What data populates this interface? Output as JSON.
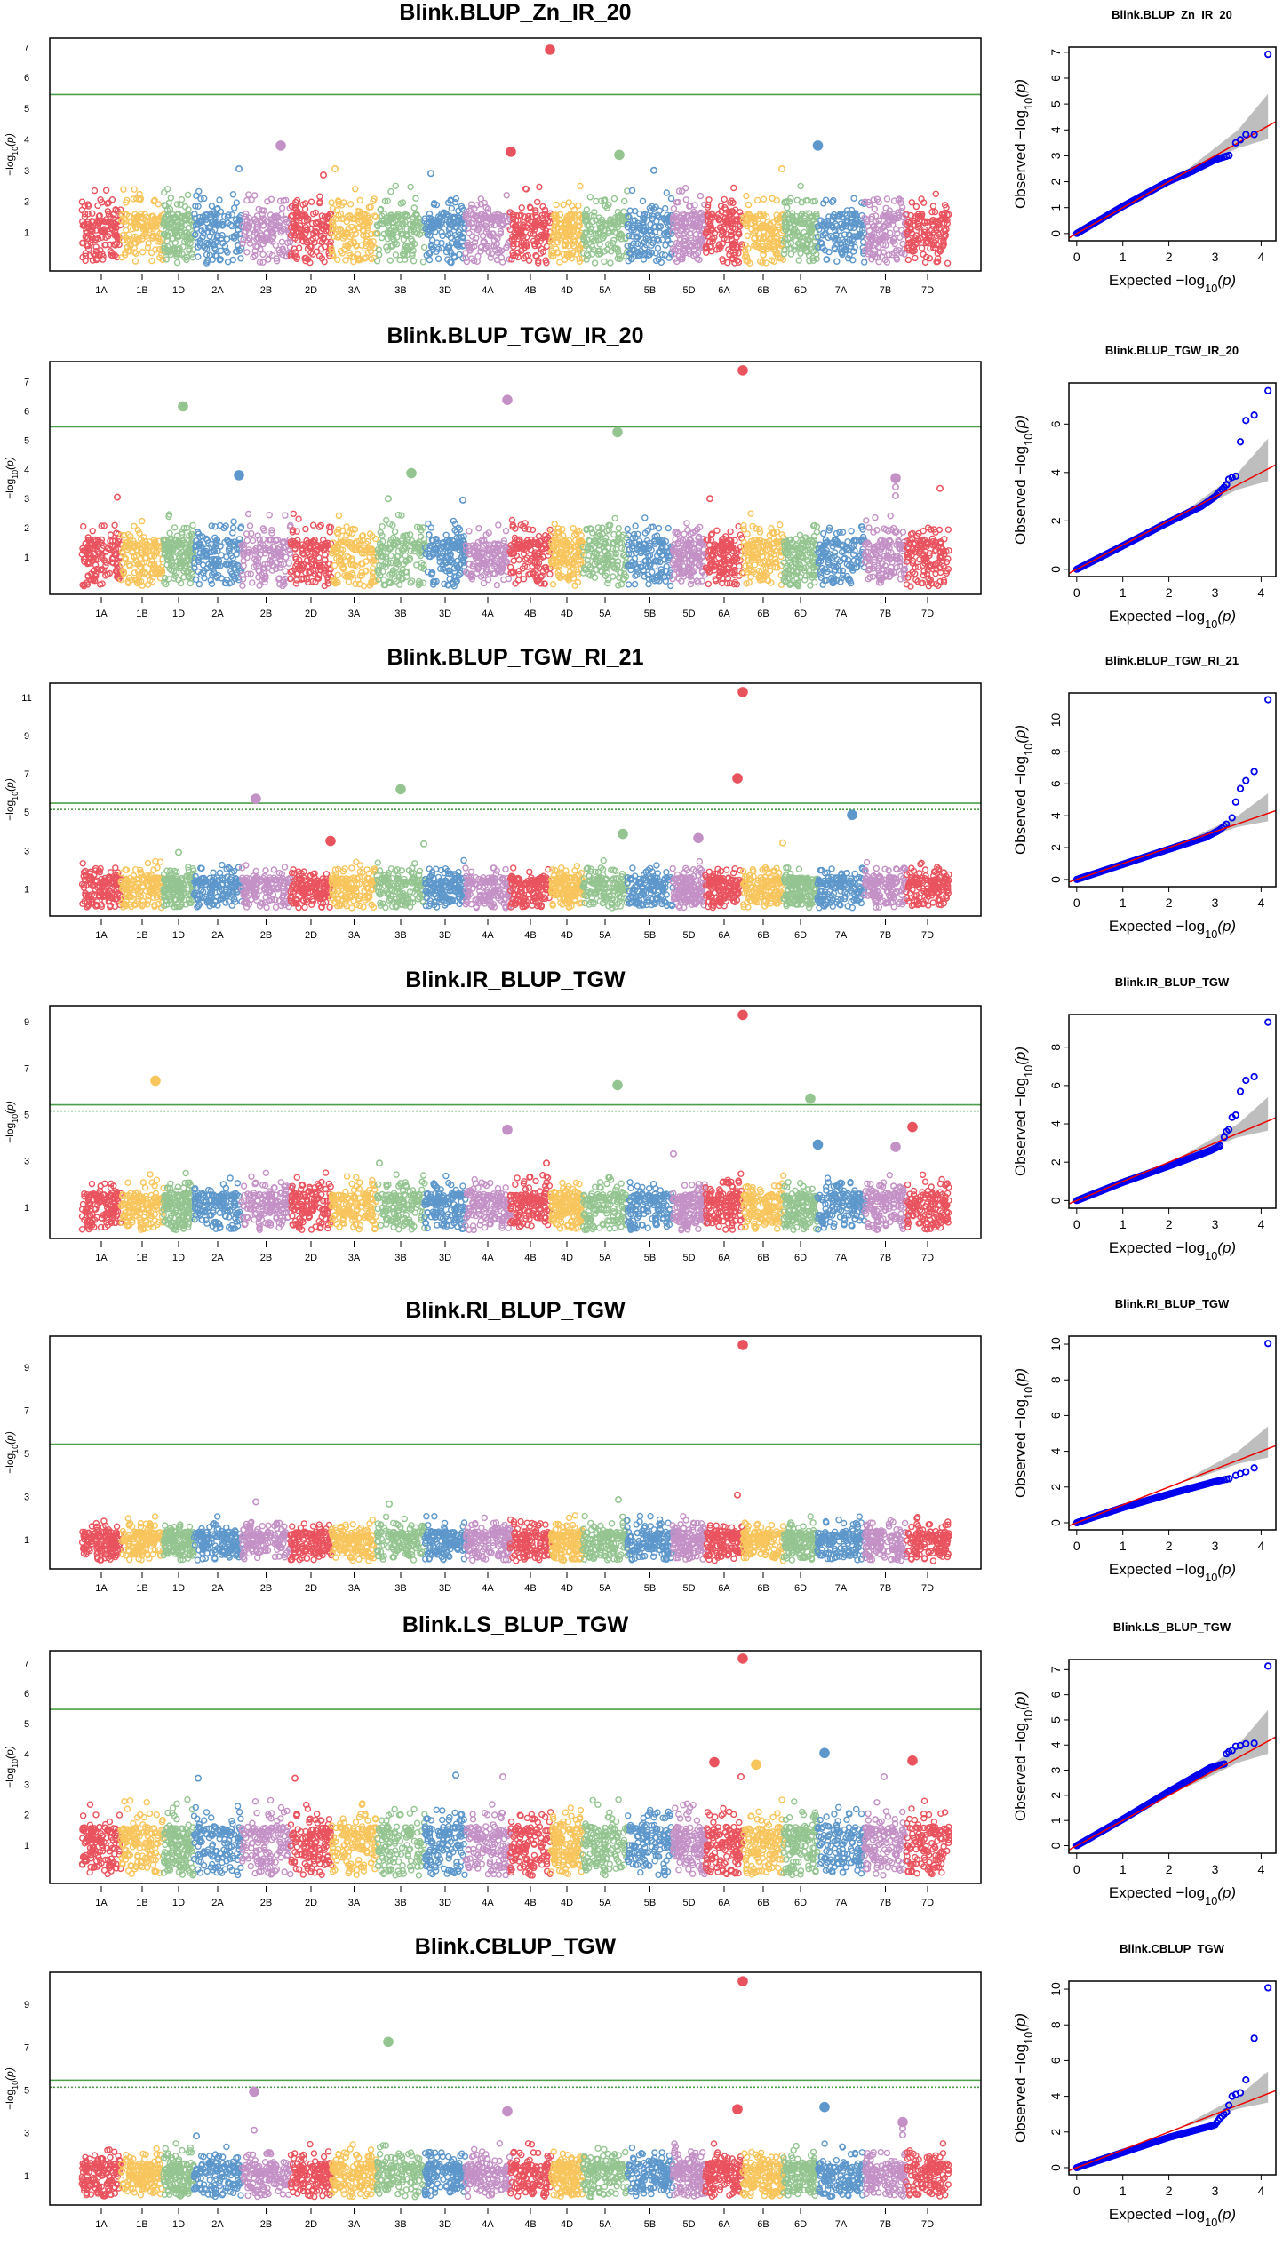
{
  "chromosomes": [
    "1A",
    "1B",
    "1D",
    "2A",
    "2B",
    "2D",
    "3A",
    "3B",
    "3D",
    "4A",
    "4B",
    "4D",
    "5A",
    "5B",
    "5D",
    "6A",
    "6B",
    "6D",
    "7A",
    "7B",
    "7D"
  ],
  "chromosome_lengths": [
    44,
    48,
    34,
    54,
    55,
    46,
    51,
    54,
    46,
    50,
    46,
    36,
    50,
    51,
    37,
    42,
    46,
    38,
    53,
    47,
    48
  ],
  "colors": {
    "chromosome_palette": [
      "#E9535E",
      "#F8C55C",
      "#94C591",
      "#5D97CB",
      "#C491C6"
    ],
    "threshold": "#4C9F48",
    "qq_points": "#0000EE",
    "qq_reference_line": "#EE0000",
    "qq_confidence_band": "#BEBEBE"
  },
  "labels": {
    "manhattan_ylabel": {
      "prefix": "−log",
      "sub": "10",
      "suffix": "(p)"
    },
    "qq_ylabel": {
      "prefix": "Observed  −log",
      "sub": "10",
      "suffix": "(p)"
    },
    "qq_xlabel": {
      "prefix": "Expected  −log",
      "sub": "10",
      "suffix": "(p)"
    }
  },
  "qq_confidence_band": [
    [
      2.2,
      2.2,
      2.2
    ],
    [
      2.6,
      2.5,
      2.75
    ],
    [
      3.0,
      2.85,
      3.3
    ],
    [
      3.5,
      3.3,
      4.0
    ],
    [
      4.15,
      3.65,
      5.4
    ]
  ],
  "chart_data": [
    {
      "type": "scatter",
      "kind": "manhattan",
      "title": "Blink.BLUP_Zn_IR_20",
      "ylim": [
        -0.25,
        7.27
      ],
      "yticks": [
        1,
        2,
        3,
        4,
        5,
        6,
        7
      ],
      "threshold": 5.45,
      "threshold_dashed": null,
      "peaks": [
        {
          "chr": "4B",
          "pos": 45,
          "p": 6.9
        },
        {
          "chr": "2B",
          "pos": 44,
          "p": 3.8
        },
        {
          "chr": "4B",
          "pos": 1,
          "p": 3.6
        },
        {
          "chr": "5A",
          "pos": 41,
          "p": 3.5
        },
        {
          "chr": "7A",
          "pos": 0.5,
          "p": 3.8
        },
        {
          "chr": "2A",
          "pos": 51,
          "p": 3.05
        },
        {
          "chr": "3A",
          "pos": 4,
          "p": 3.05
        },
        {
          "chr": "2D",
          "pos": 37,
          "p": 2.85
        },
        {
          "chr": "6B",
          "pos": 44,
          "p": 3.05
        },
        {
          "chr": "5B",
          "pos": 30,
          "p": 3.0
        },
        {
          "chr": "3D",
          "pos": 7,
          "p": 2.9
        }
      ]
    },
    {
      "type": "scatter",
      "kind": "manhattan",
      "title": "Blink.BLUP_TGW_IR_20",
      "ylim": [
        -0.27,
        7.68
      ],
      "yticks": [
        1,
        2,
        3,
        4,
        5,
        6,
        7
      ],
      "threshold": 5.45,
      "threshold_dashed": null,
      "peaks": [
        {
          "chr": "1D",
          "pos": 22,
          "p": 6.15
        },
        {
          "chr": "4A",
          "pos": 47,
          "p": 6.37
        },
        {
          "chr": "6A",
          "pos": 42,
          "p": 7.38
        },
        {
          "chr": "5A",
          "pos": 39,
          "p": 5.27
        },
        {
          "chr": "2A",
          "pos": 51,
          "p": 3.8
        },
        {
          "chr": "3B",
          "pos": 39,
          "p": 3.87
        },
        {
          "chr": "3B",
          "pos": 13,
          "p": 3.0
        },
        {
          "chr": "7B",
          "pos": 35,
          "p": 3.7
        },
        {
          "chr": "7B",
          "pos": 35,
          "p": 3.4
        },
        {
          "chr": "7B",
          "pos": 35,
          "p": 3.1
        },
        {
          "chr": "7D",
          "pos": 38,
          "p": 3.35
        },
        {
          "chr": "1A",
          "pos": 40,
          "p": 3.05
        },
        {
          "chr": "3D",
          "pos": 43,
          "p": 2.95
        },
        {
          "chr": "6A",
          "pos": 5,
          "p": 3.0
        }
      ]
    },
    {
      "type": "scatter",
      "kind": "manhattan",
      "title": "Blink.BLUP_TGW_RI_21",
      "ylim": [
        -0.42,
        11.74
      ],
      "yticks": [
        1,
        3,
        5,
        7,
        9,
        11
      ],
      "threshold": 5.47,
      "threshold_dashed": 5.14,
      "peaks": [
        {
          "chr": "6A",
          "pos": 42,
          "p": 11.28
        },
        {
          "chr": "6A",
          "pos": 36,
          "p": 6.77
        },
        {
          "chr": "3B",
          "pos": 27,
          "p": 6.2
        },
        {
          "chr": "2B",
          "pos": 16,
          "p": 5.7
        },
        {
          "chr": "7A",
          "pos": 39,
          "p": 4.86
        },
        {
          "chr": "5A",
          "pos": 45,
          "p": 3.87
        },
        {
          "chr": "5D",
          "pos": 29,
          "p": 3.65
        },
        {
          "chr": "2D",
          "pos": 45,
          "p": 3.5
        },
        {
          "chr": "3B",
          "pos": 53,
          "p": 3.35
        },
        {
          "chr": "6B",
          "pos": 45,
          "p": 3.4
        },
        {
          "chr": "1D",
          "pos": 17,
          "p": 2.9
        }
      ]
    },
    {
      "type": "scatter",
      "kind": "manhattan",
      "title": "Blink.IR_BLUP_TGW",
      "ylim": [
        -0.35,
        9.7
      ],
      "yticks": [
        1,
        3,
        5,
        7,
        9
      ],
      "threshold": 5.42,
      "threshold_dashed": 5.15,
      "peaks": [
        {
          "chr": "6A",
          "pos": 42,
          "p": 9.3
        },
        {
          "chr": "1B",
          "pos": 39,
          "p": 6.46
        },
        {
          "chr": "5A",
          "pos": 39,
          "p": 6.27
        },
        {
          "chr": "6D",
          "pos": 30,
          "p": 5.69
        },
        {
          "chr": "4A",
          "pos": 47,
          "p": 4.34
        },
        {
          "chr": "7D",
          "pos": 7,
          "p": 4.46
        },
        {
          "chr": "7A",
          "pos": 0.5,
          "p": 3.7
        },
        {
          "chr": "7B",
          "pos": 35,
          "p": 3.6
        },
        {
          "chr": "5D",
          "pos": 1,
          "p": 3.3
        },
        {
          "chr": "3B",
          "pos": 3,
          "p": 2.9
        },
        {
          "chr": "4B",
          "pos": 41,
          "p": 2.9
        }
      ]
    },
    {
      "type": "scatter",
      "kind": "manhattan",
      "title": "Blink.RI_BLUP_TGW",
      "ylim": [
        -0.37,
        10.45
      ],
      "yticks": [
        1,
        3,
        5,
        7,
        9
      ],
      "threshold": 5.43,
      "threshold_dashed": null,
      "peaks": [
        {
          "chr": "6A",
          "pos": 42,
          "p": 10.04
        },
        {
          "chr": "6A",
          "pos": 36,
          "p": 3.07
        },
        {
          "chr": "5A",
          "pos": 40,
          "p": 2.85
        },
        {
          "chr": "2B",
          "pos": 16,
          "p": 2.75
        },
        {
          "chr": "3B",
          "pos": 14,
          "p": 2.65
        }
      ]
    },
    {
      "type": "scatter",
      "kind": "manhattan",
      "title": "Blink.LS_BLUP_TGW",
      "ylim": [
        -0.26,
        7.4
      ],
      "yticks": [
        1,
        2,
        3,
        4,
        5,
        6,
        7
      ],
      "threshold": 5.47,
      "threshold_dashed": null,
      "peaks": [
        {
          "chr": "6A",
          "pos": 42,
          "p": 7.14
        },
        {
          "chr": "7A",
          "pos": 8,
          "p": 4.03
        },
        {
          "chr": "6A",
          "pos": 10,
          "p": 3.73
        },
        {
          "chr": "6B",
          "pos": 15,
          "p": 3.65
        },
        {
          "chr": "7D",
          "pos": 7,
          "p": 3.78
        },
        {
          "chr": "3D",
          "pos": 35,
          "p": 3.3
        },
        {
          "chr": "2A",
          "pos": 5,
          "p": 3.2
        },
        {
          "chr": "2D",
          "pos": 5,
          "p": 3.2
        },
        {
          "chr": "4A",
          "pos": 42,
          "p": 3.25
        },
        {
          "chr": "7B",
          "pos": 22,
          "p": 3.25
        },
        {
          "chr": "6A",
          "pos": 40,
          "p": 3.25
        }
      ]
    },
    {
      "type": "scatter",
      "kind": "manhattan",
      "title": "Blink.CBLUP_TGW",
      "ylim": [
        -0.38,
        10.5
      ],
      "yticks": [
        1,
        3,
        5,
        7,
        9
      ],
      "threshold": 5.46,
      "threshold_dashed": 5.13,
      "peaks": [
        {
          "chr": "6A",
          "pos": 42,
          "p": 10.08
        },
        {
          "chr": "3B",
          "pos": 13,
          "p": 7.25
        },
        {
          "chr": "2B",
          "pos": 14,
          "p": 4.92
        },
        {
          "chr": "2B",
          "pos": 14,
          "p": 3.12
        },
        {
          "chr": "4A",
          "pos": 47,
          "p": 4.0
        },
        {
          "chr": "6A",
          "pos": 36,
          "p": 4.1
        },
        {
          "chr": "7A",
          "pos": 8,
          "p": 4.2
        },
        {
          "chr": "7B",
          "pos": 43,
          "p": 3.5
        },
        {
          "chr": "7B",
          "pos": 43,
          "p": 3.2
        },
        {
          "chr": "7B",
          "pos": 43,
          "p": 2.9
        },
        {
          "chr": "2A",
          "pos": 3,
          "p": 2.85
        }
      ]
    },
    {
      "type": "scatter",
      "kind": "qq",
      "title": "Blink.BLUP_Zn_IR_20",
      "xlim": [
        -0.17,
        4.32
      ],
      "ylim": [
        -0.28,
        7.2
      ],
      "xticks": [
        0,
        1,
        2,
        3,
        4
      ],
      "yticks": [
        0,
        1,
        2,
        3,
        4,
        5,
        6,
        7
      ],
      "top_points": [
        [
          4.15,
          6.92
        ],
        [
          3.85,
          3.82
        ],
        [
          3.67,
          3.82
        ],
        [
          3.55,
          3.62
        ],
        [
          3.45,
          3.5
        ]
      ],
      "bulk": [
        [
          0,
          0
        ],
        [
          1,
          1.05
        ],
        [
          2,
          2.02
        ],
        [
          2.5,
          2.4
        ],
        [
          3,
          2.85
        ],
        [
          3.37,
          3.05
        ]
      ]
    },
    {
      "type": "scatter",
      "kind": "qq",
      "title": "Blink.BLUP_TGW_IR_20",
      "xlim": [
        -0.17,
        4.32
      ],
      "ylim": [
        -0.3,
        7.7
      ],
      "xticks": [
        0,
        1,
        2,
        3,
        4
      ],
      "yticks": [
        0,
        2,
        4,
        6
      ],
      "top_points": [
        [
          4.15,
          7.38
        ],
        [
          3.85,
          6.37
        ],
        [
          3.67,
          6.15
        ],
        [
          3.55,
          5.27
        ],
        [
          3.45,
          3.85
        ],
        [
          3.37,
          3.8
        ],
        [
          3.3,
          3.72
        ]
      ],
      "bulk": [
        [
          0,
          0
        ],
        [
          1,
          0.97
        ],
        [
          2,
          1.95
        ],
        [
          2.7,
          2.6
        ],
        [
          3,
          3.0
        ],
        [
          3.25,
          3.5
        ]
      ]
    },
    {
      "type": "scatter",
      "kind": "qq",
      "title": "Blink.BLUP_TGW_RI_21",
      "xlim": [
        -0.17,
        4.32
      ],
      "ylim": [
        -0.45,
        11.7
      ],
      "xticks": [
        0,
        1,
        2,
        3,
        4
      ],
      "yticks": [
        0,
        2,
        4,
        6,
        8,
        10
      ],
      "top_points": [
        [
          4.15,
          11.28
        ],
        [
          3.85,
          6.77
        ],
        [
          3.67,
          6.2
        ],
        [
          3.55,
          5.7
        ],
        [
          3.45,
          4.86
        ],
        [
          3.37,
          3.87
        ]
      ],
      "bulk": [
        [
          0,
          0
        ],
        [
          1,
          0.95
        ],
        [
          2,
          1.9
        ],
        [
          2.8,
          2.65
        ],
        [
          3.1,
          3.1
        ],
        [
          3.3,
          3.6
        ]
      ]
    },
    {
      "type": "scatter",
      "kind": "qq",
      "title": "Blink.IR_BLUP_TGW",
      "xlim": [
        -0.17,
        4.32
      ],
      "ylim": [
        -0.4,
        9.7
      ],
      "xticks": [
        0,
        1,
        2,
        3,
        4
      ],
      "yticks": [
        0,
        2,
        4,
        6,
        8
      ],
      "top_points": [
        [
          4.15,
          9.3
        ],
        [
          3.85,
          6.46
        ],
        [
          3.67,
          6.27
        ],
        [
          3.55,
          5.69
        ],
        [
          3.45,
          4.46
        ],
        [
          3.37,
          4.34
        ],
        [
          3.3,
          3.7
        ],
        [
          3.25,
          3.6
        ],
        [
          3.2,
          3.3
        ]
      ],
      "bulk": [
        [
          0,
          0
        ],
        [
          1,
          0.95
        ],
        [
          2,
          1.8
        ],
        [
          2.9,
          2.6
        ],
        [
          3.15,
          2.9
        ]
      ]
    },
    {
      "type": "scatter",
      "kind": "qq",
      "title": "Blink.RI_BLUP_TGW",
      "xlim": [
        -0.17,
        4.32
      ],
      "ylim": [
        -0.4,
        10.45
      ],
      "xticks": [
        0,
        1,
        2,
        3,
        4
      ],
      "yticks": [
        0,
        2,
        4,
        6,
        8,
        10
      ],
      "top_points": [
        [
          4.15,
          10.04
        ],
        [
          3.85,
          3.07
        ],
        [
          3.67,
          2.85
        ],
        [
          3.55,
          2.75
        ],
        [
          3.45,
          2.65
        ]
      ],
      "bulk": [
        [
          0,
          0
        ],
        [
          1,
          0.85
        ],
        [
          2,
          1.6
        ],
        [
          3,
          2.3
        ],
        [
          3.37,
          2.5
        ]
      ]
    },
    {
      "type": "scatter",
      "kind": "qq",
      "title": "Blink.LS_BLUP_TGW",
      "xlim": [
        -0.17,
        4.32
      ],
      "ylim": [
        -0.3,
        7.4
      ],
      "xticks": [
        0,
        1,
        2,
        3,
        4
      ],
      "yticks": [
        0,
        1,
        2,
        3,
        4,
        5,
        6,
        7
      ],
      "top_points": [
        [
          4.15,
          7.14
        ],
        [
          3.85,
          4.07
        ],
        [
          3.67,
          4.05
        ],
        [
          3.55,
          3.98
        ],
        [
          3.45,
          3.95
        ],
        [
          3.37,
          3.78
        ],
        [
          3.3,
          3.73
        ],
        [
          3.25,
          3.65
        ]
      ],
      "bulk": [
        [
          0,
          0
        ],
        [
          1,
          1.05
        ],
        [
          2,
          2.15
        ],
        [
          2.9,
          3.1
        ],
        [
          3.2,
          3.25
        ]
      ]
    },
    {
      "type": "scatter",
      "kind": "qq",
      "title": "Blink.CBLUP_TGW",
      "xlim": [
        -0.17,
        4.32
      ],
      "ylim": [
        -0.4,
        10.45
      ],
      "xticks": [
        0,
        1,
        2,
        3,
        4
      ],
      "yticks": [
        0,
        2,
        4,
        6,
        8,
        10
      ],
      "top_points": [
        [
          4.15,
          10.08
        ],
        [
          3.85,
          7.25
        ],
        [
          3.67,
          4.92
        ],
        [
          3.55,
          4.2
        ],
        [
          3.45,
          4.1
        ],
        [
          3.37,
          4.0
        ],
        [
          3.3,
          3.5
        ]
      ],
      "bulk": [
        [
          0,
          0
        ],
        [
          1,
          0.85
        ],
        [
          2,
          1.7
        ],
        [
          3,
          2.4
        ],
        [
          3.1,
          2.75
        ],
        [
          3.25,
          3.12
        ]
      ]
    }
  ]
}
